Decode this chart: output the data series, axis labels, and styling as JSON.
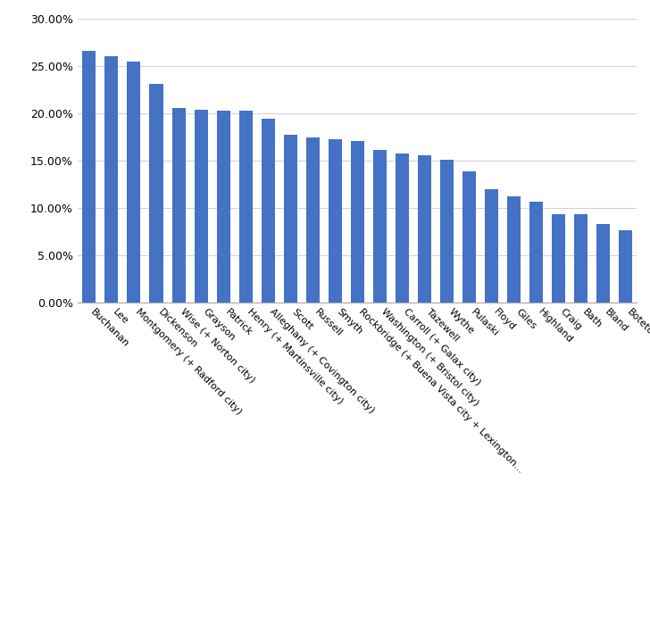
{
  "categories": [
    "Buchanan",
    "Lee",
    "Montgomery (+ Radford city)",
    "Dickenson",
    "Wise (+ Norton city)",
    "Grayson",
    "Patrick",
    "Henry (+ Martinsville city)",
    "Alleghany (+ Covington city)",
    "Scott",
    "Russell",
    "Smyth",
    "Rockbridge (+ Buena Vista city + Lexington...",
    "Washington (+ Bristol city)",
    "Carroll (+ Galax city)",
    "Tazewell",
    "Wythe",
    "Pulaski",
    "Floyd",
    "Giles",
    "Highland",
    "Craig",
    "Bath",
    "Bland",
    "Botetourt"
  ],
  "values": [
    0.266,
    0.261,
    0.255,
    0.231,
    0.206,
    0.204,
    0.203,
    0.203,
    0.195,
    0.178,
    0.175,
    0.173,
    0.171,
    0.162,
    0.158,
    0.156,
    0.151,
    0.139,
    0.12,
    0.113,
    0.107,
    0.094,
    0.094,
    0.083,
    0.077
  ],
  "bar_color": "#4472C4",
  "ylim": [
    0,
    0.3
  ],
  "yticks": [
    0.0,
    0.05,
    0.1,
    0.15,
    0.2,
    0.25,
    0.3
  ],
  "background_color": "#ffffff",
  "grid_color": "#d3d3d3",
  "bar_width": 0.6,
  "label_rotation": -45,
  "label_ha": "left",
  "label_fontsize": 8,
  "ytick_fontsize": 9
}
